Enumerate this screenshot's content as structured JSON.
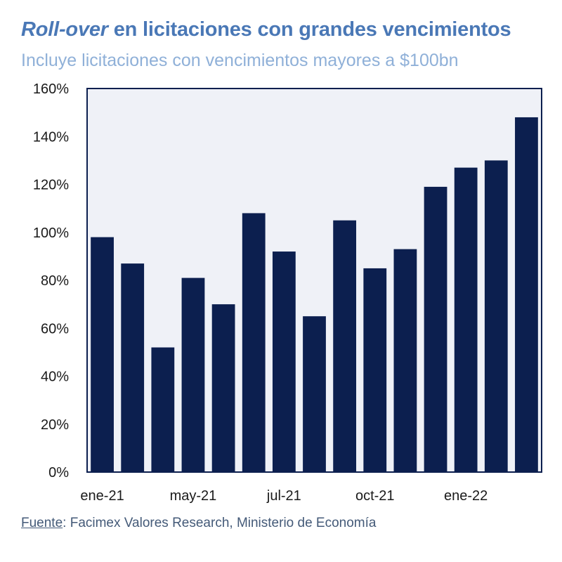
{
  "header": {
    "title_italic": "Roll-over",
    "title_rest": " en licitaciones con grandes vencimientos",
    "subtitle": "Incluye licitaciones con vencimientos mayores a $100bn"
  },
  "source": {
    "label": "Fuente",
    "text": ": Facimex Valores Research, Ministerio de Economía"
  },
  "colors": {
    "bar": "#0c1f4f",
    "plot_bg": "#eff1f7",
    "axis": "#0c1f4f",
    "title": "#4a78b6",
    "subtitle": "#8fb0d8"
  },
  "chart_data": {
    "type": "bar",
    "title": "Roll-over en licitaciones con grandes vencimientos",
    "subtitle": "Incluye licitaciones con vencimientos mayores a $100bn",
    "xlabel": "",
    "ylabel": "",
    "ylim": [
      0,
      160
    ],
    "yticks": [
      0,
      20,
      40,
      60,
      80,
      100,
      120,
      140,
      160
    ],
    "ytick_labels": [
      "0%",
      "20%",
      "40%",
      "60%",
      "80%",
      "100%",
      "120%",
      "140%",
      "160%"
    ],
    "values": [
      98,
      87,
      52,
      81,
      70,
      108,
      92,
      65,
      105,
      85,
      93,
      119,
      127,
      130,
      148
    ],
    "xtick_labels": [
      {
        "index": 0,
        "label": "ene-21"
      },
      {
        "index": 3,
        "label": "may-21"
      },
      {
        "index": 6,
        "label": "jul-21"
      },
      {
        "index": 9,
        "label": "oct-21"
      },
      {
        "index": 12,
        "label": "ene-22"
      }
    ],
    "grid": false,
    "legend": "none"
  }
}
